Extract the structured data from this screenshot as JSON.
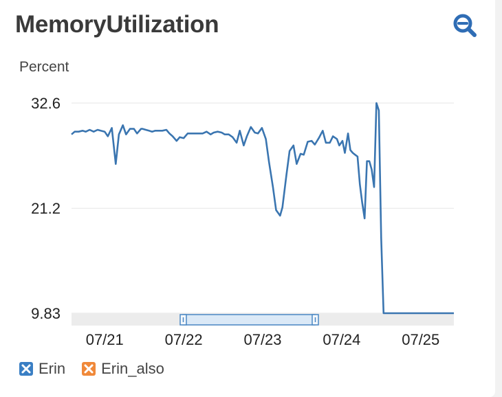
{
  "widget": {
    "title": "MemoryUtilization",
    "zoom_icon": "zoom-out-icon"
  },
  "colors": {
    "series": "#3a75b0",
    "legend_erin": "#3a7fc4",
    "legend_erin_also": "#f0893a",
    "grid": "#e6e6e6",
    "navigator": "#ececec",
    "handle": "#4a87c4"
  },
  "legend": [
    {
      "label": "Erin",
      "color": "#3a7fc4",
      "icon": "x-icon"
    },
    {
      "label": "Erin_also",
      "color": "#f0893a",
      "icon": "x-icon"
    }
  ],
  "chart_data": {
    "type": "line",
    "ylabel": "Percent",
    "ylim": [
      9.83,
      32.6
    ],
    "yticks": [
      "32.6",
      "21.2",
      "9.83"
    ],
    "ytick_values": [
      32.6,
      21.2,
      9.83
    ],
    "xlim": [
      20.58,
      25.42
    ],
    "xticks": [
      "07/21",
      "07/22",
      "07/23",
      "07/24",
      "07/25"
    ],
    "xtick_values": [
      21,
      22,
      23,
      24,
      25
    ],
    "grid": true,
    "legend_position": "bottom-left",
    "series": [
      {
        "name": "Erin",
        "x": [
          20.58,
          20.62,
          20.67,
          20.72,
          20.76,
          20.81,
          20.86,
          20.91,
          20.95,
          21.0,
          21.04,
          21.09,
          21.14,
          21.18,
          21.23,
          21.27,
          21.32,
          21.37,
          21.41,
          21.46,
          21.48,
          21.52,
          21.56,
          21.6,
          21.64,
          21.69,
          21.73,
          21.78,
          21.82,
          21.86,
          21.91,
          21.95,
          22.0,
          22.05,
          22.1,
          22.15,
          22.2,
          22.24,
          22.29,
          22.34,
          22.38,
          22.43,
          22.48,
          22.52,
          22.57,
          22.62,
          22.67,
          22.71,
          22.76,
          22.8,
          22.85,
          22.9,
          22.94,
          22.99,
          23.04,
          23.08,
          23.13,
          23.17,
          23.22,
          23.25,
          23.3,
          23.34,
          23.39,
          23.43,
          23.48,
          23.52,
          23.57,
          23.62,
          23.66,
          23.71,
          23.76,
          23.8,
          23.85,
          23.89,
          23.94,
          23.97,
          24.01,
          24.04,
          24.08,
          24.11,
          24.14,
          24.17,
          24.2,
          24.23,
          24.26,
          24.29,
          24.32,
          24.35,
          24.38,
          24.41,
          24.44,
          24.47,
          24.5,
          24.53,
          24.56,
          24.6,
          24.64,
          24.68,
          24.72,
          24.76,
          24.79,
          24.84,
          24.88,
          24.92,
          24.96,
          25.01,
          25.04,
          25.07,
          25.11,
          25.14,
          25.18,
          25.22,
          25.26,
          25.3,
          25.33,
          25.36,
          25.38,
          25.42
        ],
        "values": [
          29.2,
          29.5,
          29.5,
          29.6,
          29.5,
          29.7,
          29.5,
          29.7,
          29.6,
          29.5,
          29.0,
          29.9,
          26.0,
          29.2,
          30.2,
          29.2,
          29.8,
          29.8,
          29.3,
          29.8,
          29.8,
          29.7,
          29.6,
          29.5,
          29.6,
          29.6,
          29.6,
          29.7,
          29.3,
          29.0,
          28.5,
          28.9,
          28.8,
          29.3,
          29.3,
          29.3,
          29.3,
          29.3,
          29.5,
          29.2,
          29.4,
          29.5,
          29.4,
          29.2,
          29.2,
          28.9,
          28.3,
          29.6,
          28.0,
          29.0,
          30.0,
          29.4,
          29.3,
          29.9,
          28.7,
          26.2,
          23.5,
          21.0,
          20.4,
          21.3,
          24.8,
          27.4,
          28.0,
          26.0,
          27.1,
          27.0,
          28.4,
          28.5,
          28.1,
          28.8,
          29.6,
          28.3,
          28.3,
          29.0,
          28.7,
          28.0,
          28.5,
          27.2,
          29.3,
          27.5,
          27.2,
          27.0,
          26.8,
          23.8,
          21.8,
          20.1,
          26.3,
          26.3,
          25.4,
          23.5,
          32.6,
          31.8,
          18.0,
          9.83,
          9.83,
          9.83,
          9.83,
          9.83,
          9.83,
          9.83,
          9.83,
          9.83,
          9.83,
          9.83,
          9.83,
          9.83,
          9.83,
          9.83,
          9.83,
          9.83,
          9.83,
          9.83,
          9.83,
          9.83,
          9.83,
          9.83,
          9.83,
          9.83
        ]
      }
    ]
  }
}
